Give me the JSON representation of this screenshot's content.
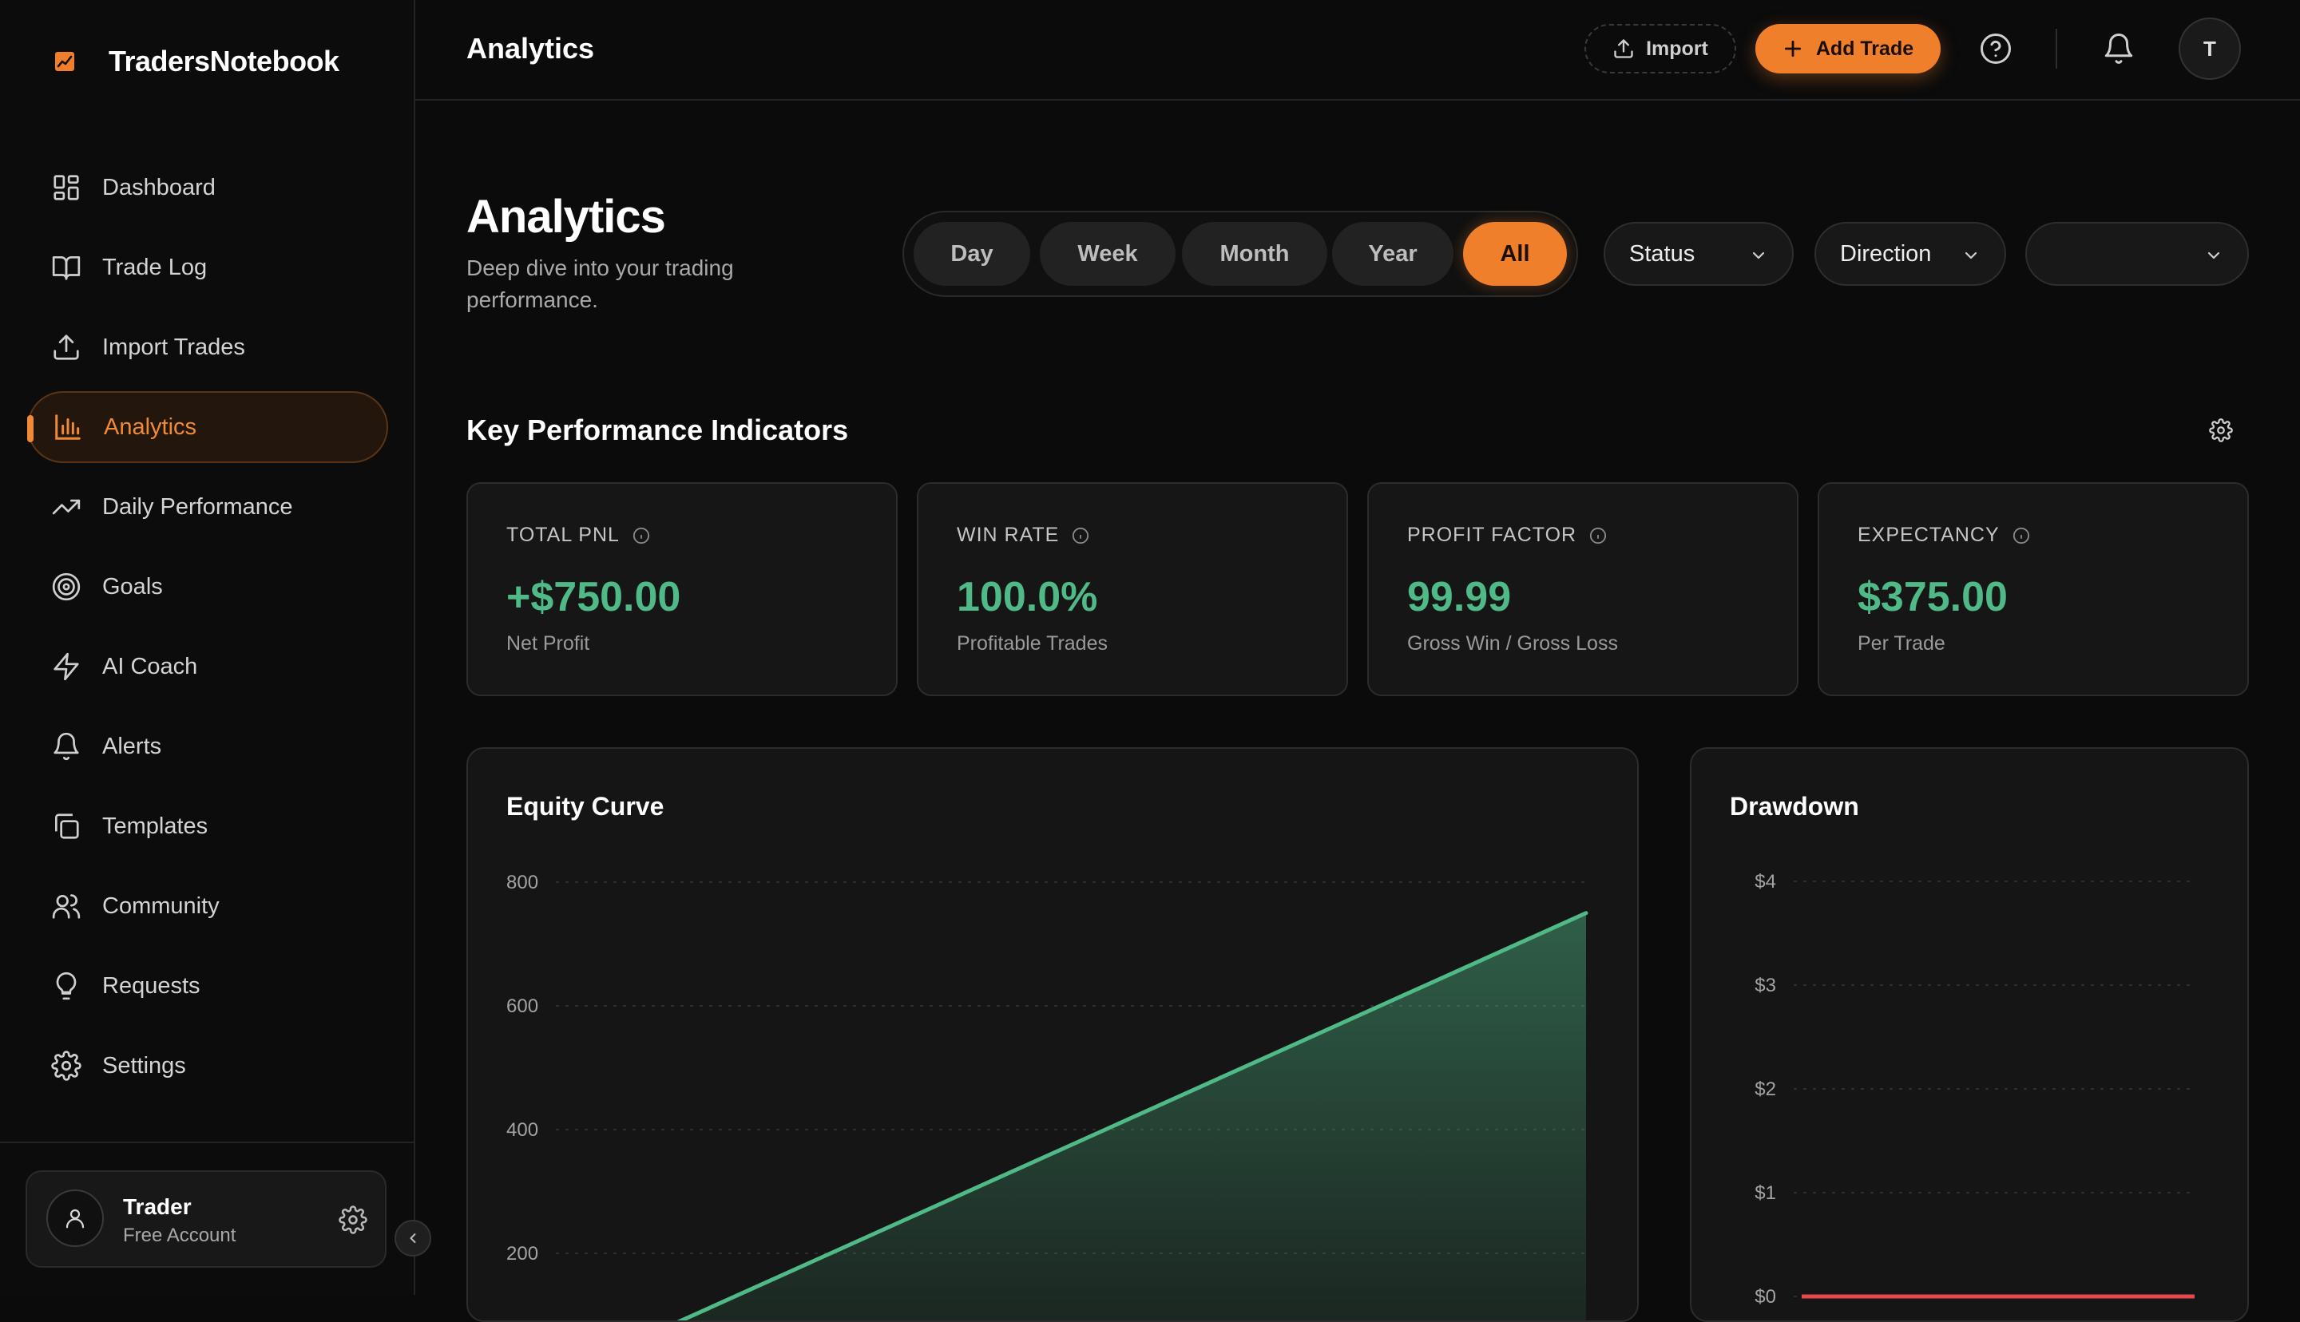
{
  "brand": {
    "name": "TradersNotebook"
  },
  "sidebar": {
    "items": [
      {
        "label": "Dashboard",
        "icon": "dashboard-icon",
        "active": false
      },
      {
        "label": "Trade Log",
        "icon": "book-icon",
        "active": false
      },
      {
        "label": "Import Trades",
        "icon": "upload-icon",
        "active": false
      },
      {
        "label": "Analytics",
        "icon": "bar-chart-icon",
        "active": true
      },
      {
        "label": "Daily Performance",
        "icon": "trending-up-icon",
        "active": false
      },
      {
        "label": "Goals",
        "icon": "target-icon",
        "active": false
      },
      {
        "label": "AI Coach",
        "icon": "lightning-icon",
        "active": false
      },
      {
        "label": "Alerts",
        "icon": "bell-icon",
        "active": false
      },
      {
        "label": "Templates",
        "icon": "copy-icon",
        "active": false
      },
      {
        "label": "Community",
        "icon": "users-icon",
        "active": false
      },
      {
        "label": "Requests",
        "icon": "lightbulb-icon",
        "active": false
      },
      {
        "label": "Settings",
        "icon": "gear-icon",
        "active": false
      }
    ],
    "user": {
      "name": "Trader",
      "plan": "Free Account"
    }
  },
  "topbar": {
    "title": "Analytics",
    "import_label": "Import",
    "add_trade_label": "Add Trade",
    "avatar_initial": "T"
  },
  "page": {
    "title": "Analytics",
    "subtitle": "Deep dive into your trading performance."
  },
  "filters": {
    "periods": [
      "Day",
      "Week",
      "Month",
      "Year",
      "All"
    ],
    "active_period": "All",
    "status_label": "Status",
    "direction_label": "Direction",
    "third_value": ""
  },
  "kpi": {
    "section_title": "Key Performance Indicators",
    "cards": [
      {
        "label": "TOTAL PNL",
        "value": "+$750.00",
        "sub": "Net Profit"
      },
      {
        "label": "WIN RATE",
        "value": "100.0%",
        "sub": "Profitable Trades"
      },
      {
        "label": "PROFIT FACTOR",
        "value": "99.99",
        "sub": "Gross Win / Gross Loss"
      },
      {
        "label": "EXPECTANCY",
        "value": "$375.00",
        "sub": "Per Trade"
      }
    ]
  },
  "colors": {
    "accent": "#f07f2c",
    "positive": "#4fb987",
    "negative": "#e5484d",
    "background": "#0b0b0b",
    "card": "#161616"
  },
  "chart_data": [
    {
      "type": "area",
      "title": "Equity Curve",
      "y_ticks": [
        "800",
        "600",
        "400",
        "200"
      ],
      "ylim": [
        0,
        800
      ],
      "grid": true,
      "x": [
        0,
        1,
        2
      ],
      "series": [
        {
          "values": [
            0,
            375,
            750
          ]
        }
      ]
    },
    {
      "type": "area",
      "title": "Drawdown",
      "y_ticks": [
        "$4",
        "$3",
        "$2",
        "$1",
        "$0"
      ],
      "ylim": [
        0,
        4
      ],
      "grid": true,
      "x": [
        0,
        1,
        2
      ],
      "series": [
        {
          "values": [
            0,
            0,
            0
          ]
        }
      ]
    }
  ]
}
